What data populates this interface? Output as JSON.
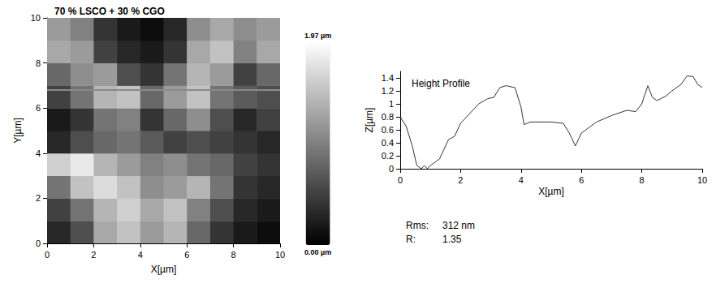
{
  "chart_data": [
    {
      "type": "heatmap",
      "title": "70 % LSCO + 30 % CGO",
      "x_label": "X[µm]",
      "y_label": "Y[µm]",
      "xlim": [
        0,
        10
      ],
      "ylim": [
        0,
        10
      ],
      "xticks": [
        0,
        2,
        4,
        6,
        8,
        10
      ],
      "yticks": [
        0,
        2,
        4,
        6,
        8,
        10
      ],
      "cells": [
        [
          0.3,
          0.6,
          1.3,
          1.5,
          1.2,
          1.4,
          0.8,
          0.4,
          0.2,
          0.1
        ],
        [
          0.5,
          0.9,
          1.4,
          1.6,
          1.3,
          1.5,
          1.0,
          0.6,
          0.3,
          0.2
        ],
        [
          0.9,
          1.5,
          1.7,
          1.5,
          1.1,
          1.2,
          1.4,
          0.9,
          0.4,
          0.3
        ],
        [
          1.6,
          1.8,
          1.4,
          1.2,
          1.0,
          1.1,
          0.9,
          0.8,
          0.5,
          0.4
        ],
        [
          0.3,
          0.6,
          0.8,
          0.9,
          0.7,
          0.5,
          0.6,
          0.5,
          0.4,
          0.3
        ],
        [
          0.2,
          0.4,
          0.9,
          1.0,
          0.4,
          0.8,
          1.1,
          0.6,
          0.3,
          0.5
        ],
        [
          0.5,
          0.9,
          1.4,
          1.5,
          0.8,
          1.2,
          1.5,
          0.9,
          0.7,
          0.6
        ],
        [
          0.8,
          1.1,
          1.2,
          0.6,
          0.4,
          0.9,
          1.4,
          1.2,
          0.5,
          0.8
        ],
        [
          1.3,
          1.2,
          0.5,
          0.3,
          0.2,
          0.4,
          1.3,
          1.5,
          1.0,
          1.3
        ],
        [
          1.2,
          1.0,
          0.4,
          0.2,
          0.1,
          0.3,
          1.1,
          1.3,
          1.1,
          1.2
        ]
      ],
      "colorbar": {
        "range": [
          0,
          1.97
        ],
        "labels": [
          "1.97 µm",
          "0.00 µm"
        ]
      },
      "scan_line_y": 6.8
    },
    {
      "type": "line",
      "title": "Height Profile",
      "x_label": "X[µm]",
      "y_label": "Z[µm]",
      "xlim": [
        0,
        10
      ],
      "ylim": [
        0,
        1.5
      ],
      "xticks": [
        0,
        2,
        4,
        6,
        8,
        10
      ],
      "yticks": [
        0,
        0.2,
        0.4,
        0.6,
        0.8,
        1,
        1.2,
        1.4
      ],
      "x": [
        0,
        0.2,
        0.4,
        0.55,
        0.7,
        0.8,
        0.9,
        1.0,
        1.3,
        1.6,
        1.8,
        2.0,
        2.3,
        2.6,
        2.9,
        3.1,
        3.3,
        3.5,
        3.8,
        4.0,
        4.1,
        4.3,
        5.0,
        5.4,
        5.6,
        5.8,
        6.0,
        6.5,
        7.0,
        7.5,
        7.8,
        8.0,
        8.2,
        8.35,
        8.5,
        8.8,
        9.0,
        9.3,
        9.5,
        9.7,
        9.85,
        10.0
      ],
      "values": [
        0.8,
        0.65,
        0.35,
        0.05,
        0.0,
        0.05,
        0.0,
        0.05,
        0.15,
        0.45,
        0.5,
        0.7,
        0.85,
        1.0,
        1.08,
        1.1,
        1.25,
        1.28,
        1.25,
        0.95,
        0.68,
        0.72,
        0.72,
        0.7,
        0.55,
        0.35,
        0.55,
        0.72,
        0.82,
        0.9,
        0.88,
        1.0,
        1.28,
        1.1,
        1.05,
        1.12,
        1.2,
        1.3,
        1.43,
        1.42,
        1.3,
        1.25
      ],
      "color": "#333333",
      "stats": [
        {
          "label": "Rms:",
          "value": "312 nm"
        },
        {
          "label": "R:",
          "value": "1.35"
        }
      ]
    }
  ]
}
